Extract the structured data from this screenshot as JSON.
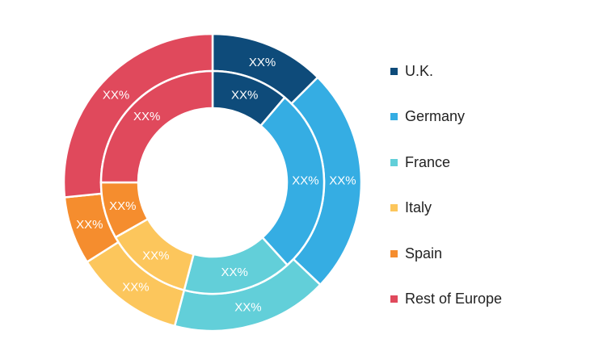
{
  "chart_data": {
    "type": "pie",
    "rings": [
      {
        "ring": "outer",
        "slices": [
          {
            "category": "U.K.",
            "value": 12.5,
            "label": "XX%"
          },
          {
            "category": "Germany",
            "value": 24.6,
            "label": "XX%"
          },
          {
            "category": "France",
            "value": 17.0,
            "label": "XX%"
          },
          {
            "category": "Italy",
            "value": 11.9,
            "label": "XX%"
          },
          {
            "category": "Spain",
            "value": 7.4,
            "label": "XX%"
          },
          {
            "category": "Rest of Europe",
            "value": 26.6,
            "label": "XX%"
          }
        ]
      },
      {
        "ring": "inner",
        "slices": [
          {
            "category": "U.K.",
            "value": 11.2,
            "label": "XX%"
          },
          {
            "category": "Germany",
            "value": 27.1,
            "label": "XX%"
          },
          {
            "category": "France",
            "value": 15.8,
            "label": "XX%"
          },
          {
            "category": "Italy",
            "value": 12.7,
            "label": "XX%"
          },
          {
            "category": "Spain",
            "value": 8.2,
            "label": "XX%"
          },
          {
            "category": "Rest of Europe",
            "value": 25.0,
            "label": "XX%"
          }
        ]
      }
    ],
    "legend": {
      "placement": "right",
      "entries": [
        {
          "label": "U.K.",
          "color": "#0e4b7a"
        },
        {
          "label": "Germany",
          "color": "#35ade3"
        },
        {
          "label": "France",
          "color": "#62cfd9"
        },
        {
          "label": "Italy",
          "color": "#fcc65c"
        },
        {
          "label": "Spain",
          "color": "#f58d2e"
        },
        {
          "label": "Rest of Europe",
          "color": "#e0495c"
        }
      ]
    }
  }
}
